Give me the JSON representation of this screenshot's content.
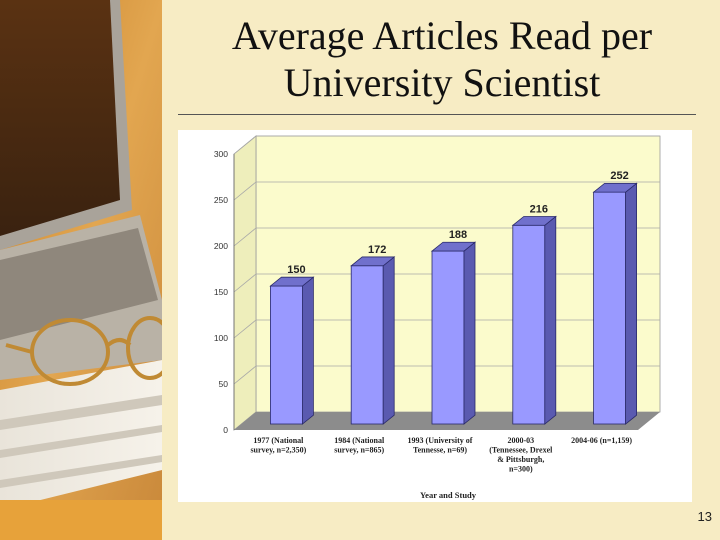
{
  "slide": {
    "title_line1": "Average Articles Read per",
    "title_line2": "University Scientist",
    "page_number": "13"
  },
  "colors": {
    "background": "#f7ecc4",
    "plot_wall": "#fbfbcc",
    "floor": "#8c8c8c",
    "bar_front": "#9999ff",
    "bar_side": "#5a5ab0",
    "bar_top": "#7070cc",
    "grid": "#a8a8a8"
  },
  "chart_data": {
    "type": "bar",
    "title": "",
    "xlabel": "Year and Study",
    "ylabel": "",
    "ylim": [
      0,
      300
    ],
    "yticks": [
      0,
      50,
      100,
      150,
      200,
      250,
      300
    ],
    "grid": true,
    "legend": "none",
    "categories": [
      [
        "1977 (National",
        "survey, n=2,350)"
      ],
      [
        "1984 (National",
        "survey, n=865)"
      ],
      [
        "1993 (University of",
        "Tennesse, n=69)"
      ],
      [
        "2000-03",
        "(Tennessee, Drexel",
        "& Pittsburgh,",
        "n=300)"
      ],
      [
        "2004-06 (n=1,159)"
      ]
    ],
    "values": [
      150,
      172,
      188,
      216,
      252
    ],
    "data_labels": [
      "150",
      "172",
      "188",
      "216",
      "252"
    ]
  }
}
